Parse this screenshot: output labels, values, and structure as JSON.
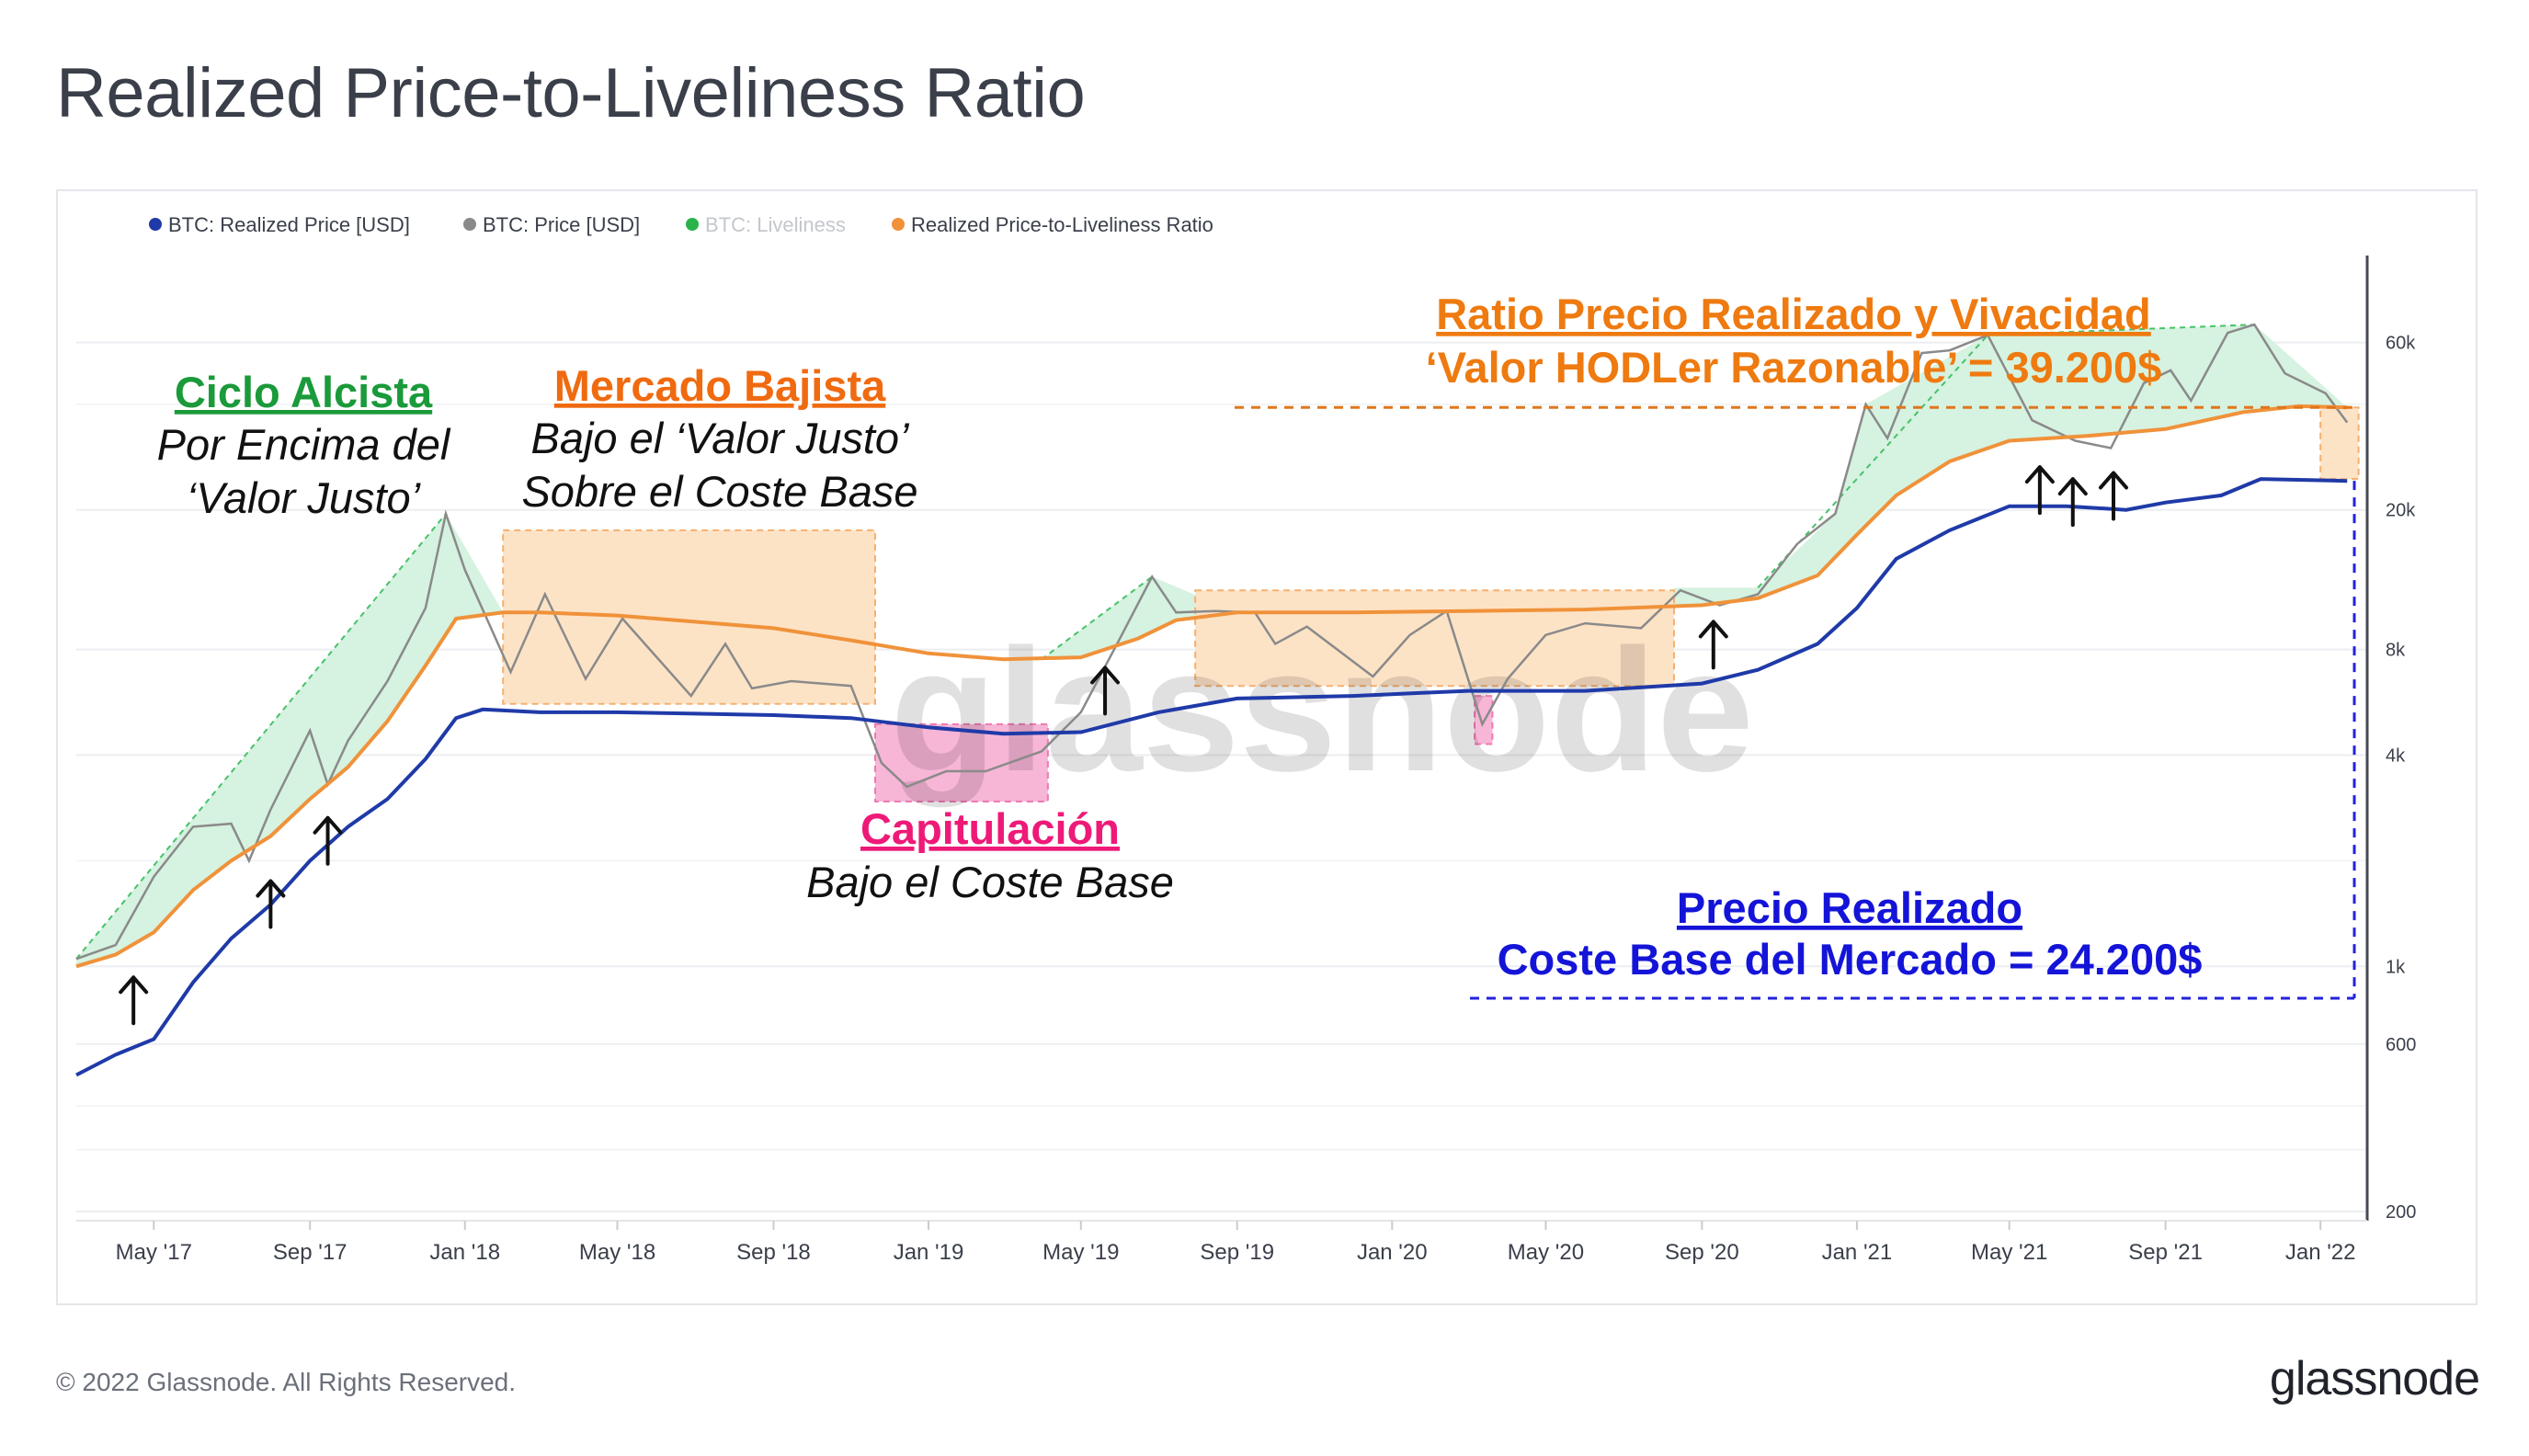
{
  "title": "Realized Price-to-Liveliness Ratio",
  "footer": {
    "copyright": "© 2022 Glassnode. All Rights Reserved.",
    "logo": "glassnode"
  },
  "watermark": "glassnode",
  "colors": {
    "realized_price": "#1f3aa8",
    "price": "#8a8a8a",
    "liveliness": "#2ab34a",
    "ratio": "#f0923a",
    "green_fill": "#d6f2e0",
    "orange_fill": "#fde3c6",
    "pink_fill": "#f7b6d6",
    "bull": "#1a9a3a",
    "bear": "#f06a10",
    "cap": "#ee1a77",
    "blue_ann": "#1414d8",
    "hodl": "#ee7a10"
  },
  "legend": [
    {
      "label": "BTC: Realized Price [USD]",
      "color": "#1f3aa8",
      "muted": false
    },
    {
      "label": "BTC: Price [USD]",
      "color": "#8a8a8a",
      "muted": false
    },
    {
      "label": "BTC: Liveliness",
      "color": "#2ab34a",
      "muted": true
    },
    {
      "label": "Realized Price-to-Liveliness Ratio",
      "color": "#f0923a",
      "muted": false
    }
  ],
  "annotations": {
    "bull_title": "Ciclo Alcista",
    "bull_line1": "Por Encima del",
    "bull_line2": "‘Valor Justo’",
    "bear_title": "Mercado Bajista",
    "bear_line1": "Bajo el ‘Valor Justo’",
    "bear_line2": "Sobre el Coste Base",
    "cap_title": "Capitulación",
    "cap_line1": "Bajo el Coste Base",
    "ratio_title": "Ratio Precio Realizado y Vivacidad",
    "ratio_line1": "‘Valor HODLer Razonable’ = 39.200$",
    "rp_title": "Precio Realizado",
    "rp_line1": "Coste Base del Mercado = 24.200$"
  },
  "chart_data": {
    "type": "line",
    "y_scale": "log",
    "ylim": [
      200,
      100000
    ],
    "y_ticks": [
      200,
      600,
      1000,
      4000,
      8000,
      20000,
      60000
    ],
    "y_tick_labels": [
      "200",
      "600",
      "1k",
      "4k",
      "8k",
      "20k",
      "60k"
    ],
    "x_range": [
      "2017-03-01",
      "2022-02-01"
    ],
    "x_tick_labels": [
      "May '17",
      "Sep '17",
      "Jan '18",
      "May '18",
      "Sep '18",
      "Jan '19",
      "May '19",
      "Sep '19",
      "Jan '20",
      "May '20",
      "Sep '20",
      "Jan '21",
      "May '21",
      "Sep '21",
      "Jan '22"
    ],
    "x_ticks": [
      "2017-05-01",
      "2017-09-01",
      "2018-01-01",
      "2018-05-01",
      "2018-09-01",
      "2019-01-01",
      "2019-05-01",
      "2019-09-01",
      "2020-01-01",
      "2020-05-01",
      "2020-09-01",
      "2021-01-01",
      "2021-05-01",
      "2021-09-01",
      "2022-01-01"
    ],
    "series": [
      {
        "name": "BTC: Price [USD]",
        "points": [
          [
            "2017-03-01",
            1050
          ],
          [
            "2017-04-01",
            1150
          ],
          [
            "2017-05-01",
            1800
          ],
          [
            "2017-06-01",
            2500
          ],
          [
            "2017-07-01",
            2550
          ],
          [
            "2017-07-15",
            2000
          ],
          [
            "2017-08-01",
            2800
          ],
          [
            "2017-09-01",
            4700
          ],
          [
            "2017-09-15",
            3300
          ],
          [
            "2017-10-01",
            4400
          ],
          [
            "2017-11-01",
            6500
          ],
          [
            "2017-12-01",
            10500
          ],
          [
            "2017-12-17",
            19500
          ],
          [
            "2018-01-01",
            13500
          ],
          [
            "2018-02-06",
            6900
          ],
          [
            "2018-03-05",
            11500
          ],
          [
            "2018-04-06",
            6600
          ],
          [
            "2018-05-05",
            9800
          ],
          [
            "2018-06-28",
            5900
          ],
          [
            "2018-07-25",
            8300
          ],
          [
            "2018-08-15",
            6200
          ],
          [
            "2018-09-15",
            6500
          ],
          [
            "2018-11-01",
            6300
          ],
          [
            "2018-11-25",
            3800
          ],
          [
            "2018-12-15",
            3250
          ],
          [
            "2019-01-15",
            3600
          ],
          [
            "2019-02-15",
            3600
          ],
          [
            "2019-03-31",
            4100
          ],
          [
            "2019-05-01",
            5300
          ],
          [
            "2019-05-31",
            8500
          ],
          [
            "2019-06-26",
            12900
          ],
          [
            "2019-07-15",
            10200
          ],
          [
            "2019-08-15",
            10300
          ],
          [
            "2019-09-15",
            10200
          ],
          [
            "2019-10-01",
            8300
          ],
          [
            "2019-10-26",
            9300
          ],
          [
            "2019-12-17",
            6700
          ],
          [
            "2020-01-15",
            8800
          ],
          [
            "2020-02-13",
            10300
          ],
          [
            "2020-03-12",
            4900
          ],
          [
            "2020-04-01",
            6600
          ],
          [
            "2020-05-01",
            8800
          ],
          [
            "2020-06-01",
            9500
          ],
          [
            "2020-07-15",
            9200
          ],
          [
            "2020-08-15",
            11800
          ],
          [
            "2020-09-15",
            10700
          ],
          [
            "2020-10-15",
            11500
          ],
          [
            "2020-11-15",
            16000
          ],
          [
            "2020-12-15",
            19500
          ],
          [
            "2021-01-08",
            40000
          ],
          [
            "2021-01-25",
            32000
          ],
          [
            "2021-02-21",
            56000
          ],
          [
            "2021-03-15",
            57000
          ],
          [
            "2021-04-14",
            63000
          ],
          [
            "2021-05-19",
            36000
          ],
          [
            "2021-06-22",
            31500
          ],
          [
            "2021-07-20",
            30000
          ],
          [
            "2021-08-15",
            46000
          ],
          [
            "2021-09-05",
            50000
          ],
          [
            "2021-09-21",
            41000
          ],
          [
            "2021-10-20",
            64000
          ],
          [
            "2021-11-10",
            67500
          ],
          [
            "2021-12-04",
            49000
          ],
          [
            "2022-01-05",
            43000
          ],
          [
            "2022-01-22",
            35500
          ]
        ]
      },
      {
        "name": "Realized Price-to-Liveliness Ratio",
        "points": [
          [
            "2017-03-01",
            1000
          ],
          [
            "2017-04-01",
            1080
          ],
          [
            "2017-05-01",
            1250
          ],
          [
            "2017-06-01",
            1650
          ],
          [
            "2017-07-01",
            2000
          ],
          [
            "2017-08-01",
            2350
          ],
          [
            "2017-09-01",
            3000
          ],
          [
            "2017-10-01",
            3700
          ],
          [
            "2017-11-01",
            5000
          ],
          [
            "2017-12-01",
            7200
          ],
          [
            "2017-12-25",
            9800
          ],
          [
            "2018-01-31",
            10200
          ],
          [
            "2018-03-01",
            10200
          ],
          [
            "2018-05-01",
            10000
          ],
          [
            "2018-07-01",
            9600
          ],
          [
            "2018-09-01",
            9200
          ],
          [
            "2018-11-01",
            8500
          ],
          [
            "2019-01-01",
            7800
          ],
          [
            "2019-03-01",
            7500
          ],
          [
            "2019-05-01",
            7600
          ],
          [
            "2019-06-15",
            8600
          ],
          [
            "2019-07-15",
            9700
          ],
          [
            "2019-09-01",
            10200
          ],
          [
            "2019-12-01",
            10200
          ],
          [
            "2020-03-01",
            10300
          ],
          [
            "2020-06-01",
            10400
          ],
          [
            "2020-09-01",
            10700
          ],
          [
            "2020-10-15",
            11200
          ],
          [
            "2020-12-01",
            13000
          ],
          [
            "2021-01-01",
            17000
          ],
          [
            "2021-02-01",
            22000
          ],
          [
            "2021-03-15",
            27500
          ],
          [
            "2021-05-01",
            31500
          ],
          [
            "2021-07-01",
            32500
          ],
          [
            "2021-09-01",
            34000
          ],
          [
            "2021-11-01",
            38000
          ],
          [
            "2021-12-15",
            39500
          ],
          [
            "2022-01-22",
            39200
          ]
        ]
      },
      {
        "name": "BTC: Realized Price [USD]",
        "points": [
          [
            "2017-03-01",
            490
          ],
          [
            "2017-04-01",
            560
          ],
          [
            "2017-05-01",
            620
          ],
          [
            "2017-06-01",
            900
          ],
          [
            "2017-07-01",
            1200
          ],
          [
            "2017-08-01",
            1500
          ],
          [
            "2017-09-01",
            2000
          ],
          [
            "2017-10-01",
            2500
          ],
          [
            "2017-11-01",
            3000
          ],
          [
            "2017-12-01",
            3900
          ],
          [
            "2017-12-25",
            5100
          ],
          [
            "2018-01-15",
            5400
          ],
          [
            "2018-03-01",
            5300
          ],
          [
            "2018-05-01",
            5300
          ],
          [
            "2018-07-01",
            5250
          ],
          [
            "2018-09-01",
            5200
          ],
          [
            "2018-11-01",
            5100
          ],
          [
            "2019-01-01",
            4800
          ],
          [
            "2019-03-01",
            4600
          ],
          [
            "2019-05-01",
            4650
          ],
          [
            "2019-07-01",
            5300
          ],
          [
            "2019-09-01",
            5800
          ],
          [
            "2019-12-01",
            5900
          ],
          [
            "2020-03-01",
            6100
          ],
          [
            "2020-06-01",
            6100
          ],
          [
            "2020-09-01",
            6400
          ],
          [
            "2020-10-15",
            7000
          ],
          [
            "2020-12-01",
            8300
          ],
          [
            "2021-01-01",
            10500
          ],
          [
            "2021-02-01",
            14500
          ],
          [
            "2021-03-15",
            17500
          ],
          [
            "2021-05-01",
            20500
          ],
          [
            "2021-06-15",
            20500
          ],
          [
            "2021-08-01",
            20000
          ],
          [
            "2021-09-01",
            21000
          ],
          [
            "2021-10-15",
            22000
          ],
          [
            "2021-11-15",
            24500
          ],
          [
            "2022-01-22",
            24200
          ]
        ]
      }
    ]
  }
}
